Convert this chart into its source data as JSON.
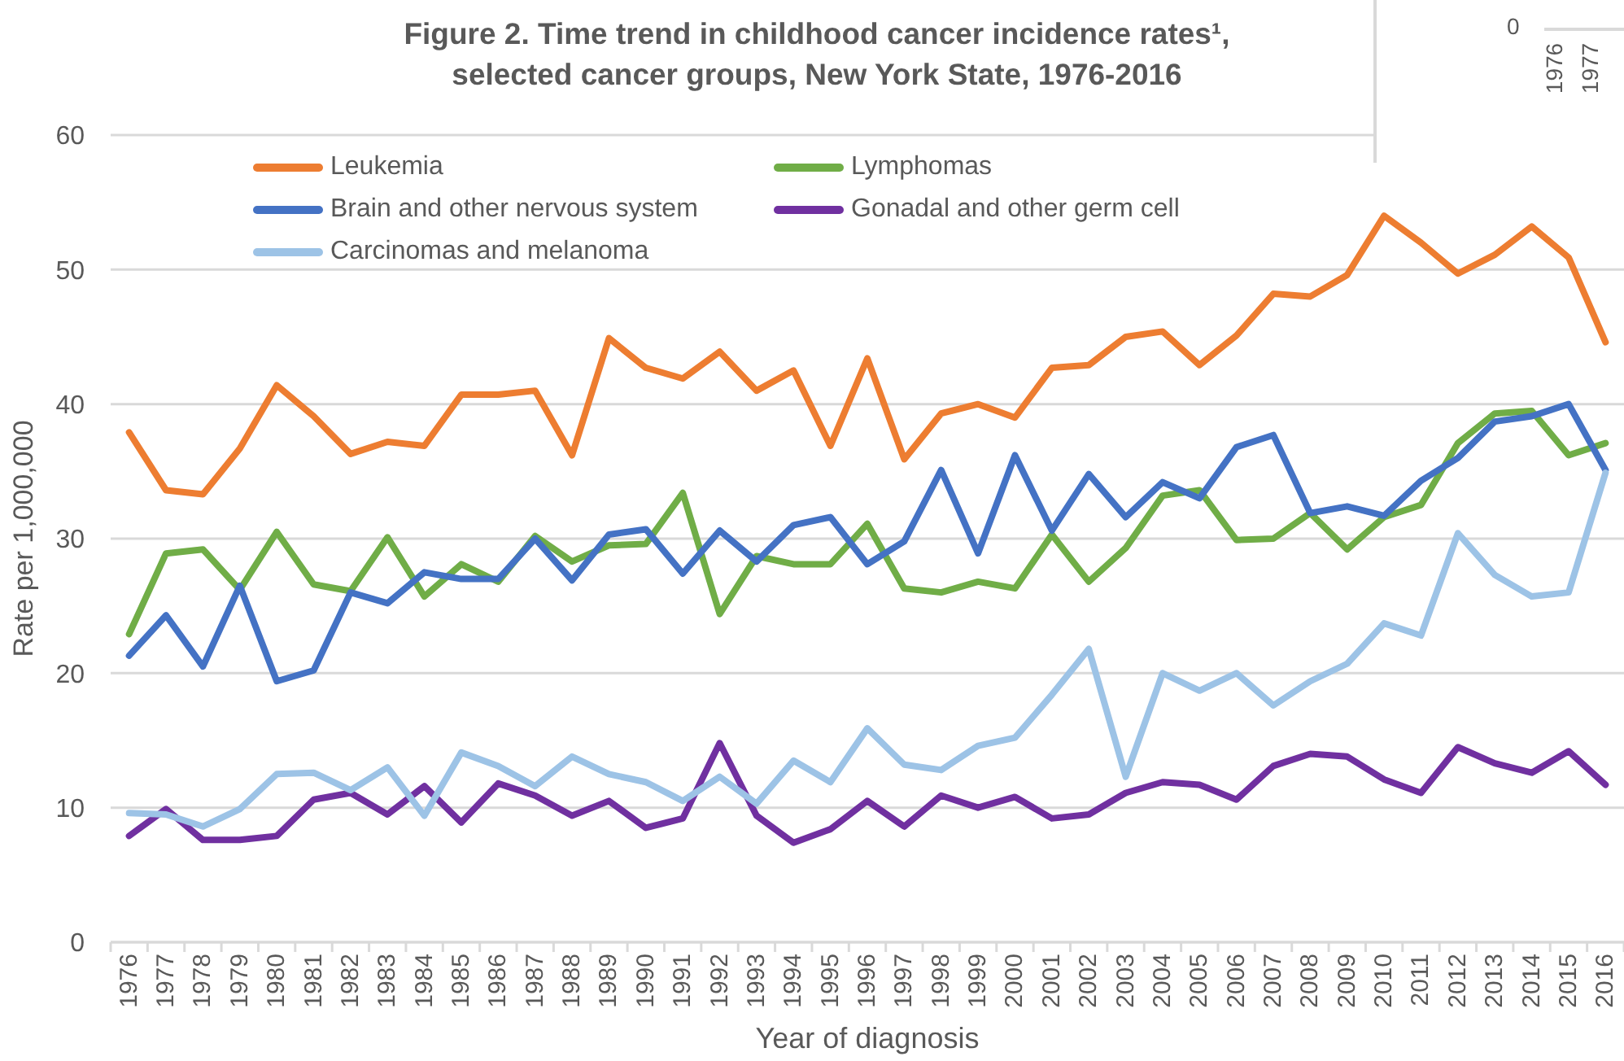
{
  "chart_data": {
    "type": "line",
    "title": "Figure 2. Time trend in childhood cancer incidence rates¹, selected cancer groups, New York State, 1976-2016",
    "xlabel": "Year of diagnosis",
    "ylabel": "Rate per 1,000,000",
    "categories": [
      "1976",
      "1977",
      "1978",
      "1979",
      "1980",
      "1981",
      "1982",
      "1983",
      "1984",
      "1985",
      "1986",
      "1987",
      "1988",
      "1989",
      "1990",
      "1991",
      "1992",
      "1993",
      "1994",
      "1995",
      "1996",
      "1997",
      "1998",
      "1999",
      "2000",
      "2001",
      "2002",
      "2003",
      "2004",
      "2005",
      "2006",
      "2007",
      "2008",
      "2009",
      "2010",
      "2011",
      "2012",
      "2013",
      "2014",
      "2015",
      "2016"
    ],
    "series": [
      {
        "name": "Leukemia",
        "color": "#ed7d31",
        "values": [
          37.9,
          33.6,
          33.3,
          36.7,
          41.4,
          39.1,
          36.3,
          37.2,
          36.9,
          40.7,
          40.7,
          41.0,
          36.2,
          44.9,
          42.7,
          41.9,
          43.9,
          41.0,
          42.5,
          36.9,
          43.4,
          35.9,
          39.3,
          40.0,
          39.0,
          42.7,
          42.9,
          45.0,
          45.4,
          42.9,
          45.1,
          48.2,
          48.0,
          49.6,
          54.0,
          52.0,
          49.7,
          51.1,
          53.2,
          50.9,
          44.6
        ]
      },
      {
        "name": "Lymphomas",
        "color": "#70ad47",
        "values": [
          22.9,
          28.9,
          29.2,
          26.2,
          30.5,
          26.6,
          26.1,
          30.1,
          25.7,
          28.1,
          26.8,
          30.2,
          28.3,
          29.5,
          29.6,
          33.4,
          24.4,
          28.7,
          28.1,
          28.1,
          31.1,
          26.3,
          26.0,
          26.8,
          26.3,
          30.3,
          26.8,
          29.3,
          33.2,
          33.6,
          29.9,
          30.0,
          31.9,
          29.2,
          31.6,
          32.5,
          37.1,
          39.3,
          39.5,
          36.2,
          37.1
        ]
      },
      {
        "name": "Brain and other nervous system",
        "color": "#4472c4",
        "values": [
          21.3,
          24.3,
          20.5,
          26.5,
          19.4,
          20.2,
          26.0,
          25.2,
          27.5,
          27.0,
          27.0,
          30.0,
          26.9,
          30.3,
          30.7,
          27.4,
          30.6,
          28.3,
          31.0,
          31.6,
          28.1,
          29.8,
          35.1,
          28.9,
          36.2,
          30.6,
          34.8,
          31.6,
          34.2,
          33.0,
          36.8,
          37.7,
          31.9,
          32.4,
          31.7,
          34.3,
          36.0,
          38.7,
          39.1,
          40.0,
          35.1
        ]
      },
      {
        "name": "Gonadal and other germ cell",
        "color": "#7030a0",
        "values": [
          7.9,
          9.9,
          7.6,
          7.6,
          7.9,
          10.6,
          11.1,
          9.5,
          11.6,
          8.9,
          11.8,
          10.9,
          9.4,
          10.5,
          8.5,
          9.2,
          14.8,
          9.4,
          7.4,
          8.4,
          10.5,
          8.6,
          10.9,
          10.0,
          10.8,
          9.2,
          9.5,
          11.1,
          11.9,
          11.7,
          10.6,
          13.1,
          14.0,
          13.8,
          12.1,
          11.1,
          14.5,
          13.3,
          12.6,
          14.2,
          11.7
        ]
      },
      {
        "name": "Carcinomas and melanoma",
        "color": "#9dc3e6",
        "values": [
          9.6,
          9.5,
          8.6,
          9.9,
          12.5,
          12.6,
          11.3,
          13.0,
          9.4,
          14.1,
          13.1,
          11.6,
          13.8,
          12.5,
          11.9,
          10.5,
          12.3,
          10.3,
          13.5,
          11.9,
          15.9,
          13.2,
          12.8,
          14.6,
          15.2,
          18.4,
          21.8,
          12.3,
          20.0,
          18.7,
          20.0,
          17.6,
          19.4,
          20.7,
          23.7,
          22.8,
          30.4,
          27.3,
          25.7,
          26.0,
          34.9
        ]
      }
    ],
    "ylim": [
      0,
      60
    ],
    "yticks": [
      0,
      10,
      20,
      30,
      40,
      50,
      60
    ],
    "grid": "y",
    "legend": "top",
    "marker": "none",
    "line_style": "solid",
    "annotations": [
      "0",
      "1976",
      "1977"
    ]
  }
}
